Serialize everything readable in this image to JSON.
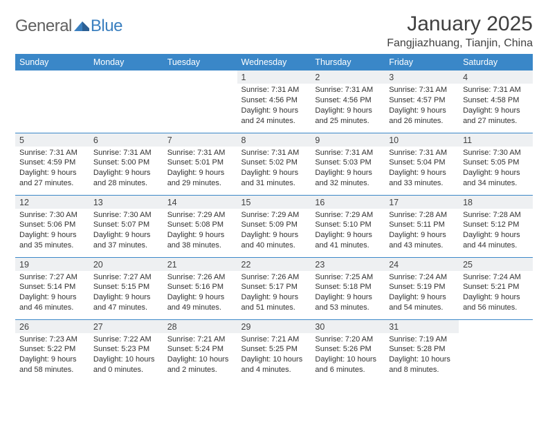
{
  "brand": {
    "text1": "General",
    "text2": "Blue"
  },
  "title": "January 2025",
  "location": "Fangjiazhuang, Tianjin, China",
  "colors": {
    "header_bg": "#3a87c8",
    "header_text": "#ffffff",
    "daynum_bg": "#eef0f2",
    "border": "#3a87c8",
    "body_text": "#303030",
    "title_text": "#404040",
    "logo_gray": "#606060",
    "logo_blue": "#3a7fbf"
  },
  "fonts": {
    "title_size": 30,
    "location_size": 16,
    "header_size": 12.5,
    "daynum_size": 12.5,
    "detail_size": 11
  },
  "weekday_headers": [
    "Sunday",
    "Monday",
    "Tuesday",
    "Wednesday",
    "Thursday",
    "Friday",
    "Saturday"
  ],
  "weeks": [
    [
      null,
      null,
      null,
      {
        "n": "1",
        "sr": "7:31 AM",
        "ss": "4:56 PM",
        "dl": "9 hours and 24 minutes."
      },
      {
        "n": "2",
        "sr": "7:31 AM",
        "ss": "4:56 PM",
        "dl": "9 hours and 25 minutes."
      },
      {
        "n": "3",
        "sr": "7:31 AM",
        "ss": "4:57 PM",
        "dl": "9 hours and 26 minutes."
      },
      {
        "n": "4",
        "sr": "7:31 AM",
        "ss": "4:58 PM",
        "dl": "9 hours and 27 minutes."
      }
    ],
    [
      {
        "n": "5",
        "sr": "7:31 AM",
        "ss": "4:59 PM",
        "dl": "9 hours and 27 minutes."
      },
      {
        "n": "6",
        "sr": "7:31 AM",
        "ss": "5:00 PM",
        "dl": "9 hours and 28 minutes."
      },
      {
        "n": "7",
        "sr": "7:31 AM",
        "ss": "5:01 PM",
        "dl": "9 hours and 29 minutes."
      },
      {
        "n": "8",
        "sr": "7:31 AM",
        "ss": "5:02 PM",
        "dl": "9 hours and 31 minutes."
      },
      {
        "n": "9",
        "sr": "7:31 AM",
        "ss": "5:03 PM",
        "dl": "9 hours and 32 minutes."
      },
      {
        "n": "10",
        "sr": "7:31 AM",
        "ss": "5:04 PM",
        "dl": "9 hours and 33 minutes."
      },
      {
        "n": "11",
        "sr": "7:30 AM",
        "ss": "5:05 PM",
        "dl": "9 hours and 34 minutes."
      }
    ],
    [
      {
        "n": "12",
        "sr": "7:30 AM",
        "ss": "5:06 PM",
        "dl": "9 hours and 35 minutes."
      },
      {
        "n": "13",
        "sr": "7:30 AM",
        "ss": "5:07 PM",
        "dl": "9 hours and 37 minutes."
      },
      {
        "n": "14",
        "sr": "7:29 AM",
        "ss": "5:08 PM",
        "dl": "9 hours and 38 minutes."
      },
      {
        "n": "15",
        "sr": "7:29 AM",
        "ss": "5:09 PM",
        "dl": "9 hours and 40 minutes."
      },
      {
        "n": "16",
        "sr": "7:29 AM",
        "ss": "5:10 PM",
        "dl": "9 hours and 41 minutes."
      },
      {
        "n": "17",
        "sr": "7:28 AM",
        "ss": "5:11 PM",
        "dl": "9 hours and 43 minutes."
      },
      {
        "n": "18",
        "sr": "7:28 AM",
        "ss": "5:12 PM",
        "dl": "9 hours and 44 minutes."
      }
    ],
    [
      {
        "n": "19",
        "sr": "7:27 AM",
        "ss": "5:14 PM",
        "dl": "9 hours and 46 minutes."
      },
      {
        "n": "20",
        "sr": "7:27 AM",
        "ss": "5:15 PM",
        "dl": "9 hours and 47 minutes."
      },
      {
        "n": "21",
        "sr": "7:26 AM",
        "ss": "5:16 PM",
        "dl": "9 hours and 49 minutes."
      },
      {
        "n": "22",
        "sr": "7:26 AM",
        "ss": "5:17 PM",
        "dl": "9 hours and 51 minutes."
      },
      {
        "n": "23",
        "sr": "7:25 AM",
        "ss": "5:18 PM",
        "dl": "9 hours and 53 minutes."
      },
      {
        "n": "24",
        "sr": "7:24 AM",
        "ss": "5:19 PM",
        "dl": "9 hours and 54 minutes."
      },
      {
        "n": "25",
        "sr": "7:24 AM",
        "ss": "5:21 PM",
        "dl": "9 hours and 56 minutes."
      }
    ],
    [
      {
        "n": "26",
        "sr": "7:23 AM",
        "ss": "5:22 PM",
        "dl": "9 hours and 58 minutes."
      },
      {
        "n": "27",
        "sr": "7:22 AM",
        "ss": "5:23 PM",
        "dl": "10 hours and 0 minutes."
      },
      {
        "n": "28",
        "sr": "7:21 AM",
        "ss": "5:24 PM",
        "dl": "10 hours and 2 minutes."
      },
      {
        "n": "29",
        "sr": "7:21 AM",
        "ss": "5:25 PM",
        "dl": "10 hours and 4 minutes."
      },
      {
        "n": "30",
        "sr": "7:20 AM",
        "ss": "5:26 PM",
        "dl": "10 hours and 6 minutes."
      },
      {
        "n": "31",
        "sr": "7:19 AM",
        "ss": "5:28 PM",
        "dl": "10 hours and 8 minutes."
      },
      null
    ]
  ],
  "labels": {
    "sunrise": "Sunrise:",
    "sunset": "Sunset:",
    "daylight": "Daylight:"
  }
}
